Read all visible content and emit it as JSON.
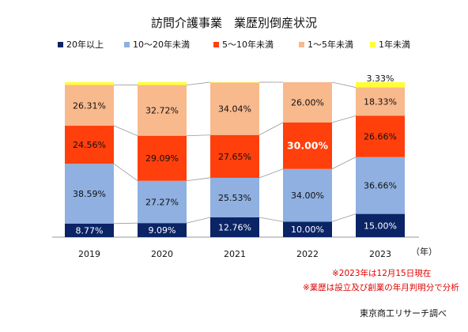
{
  "chart_data": {
    "type": "bar",
    "stacked": true,
    "percent": true,
    "title": "訪問介護事業　業歴別倒産状況",
    "categories": [
      "2019",
      "2020",
      "2021",
      "2022",
      "2023"
    ],
    "x_unit": "（年）",
    "legend_position": "top",
    "series": [
      {
        "name": "20年以上",
        "color": "#0b2466",
        "values": [
          8.77,
          9.09,
          12.76,
          10.0,
          15.0
        ],
        "labels": [
          "8.77%",
          "9.09%",
          "12.76%",
          "10.00%",
          "15.00%"
        ]
      },
      {
        "name": "10～20年未満",
        "color": "#8fb0e0",
        "values": [
          38.59,
          27.27,
          25.53,
          34.0,
          36.66
        ],
        "labels": [
          "38.59%",
          "27.27%",
          "25.53%",
          "34.00%",
          "36.66%"
        ]
      },
      {
        "name": "5～10年未満",
        "color": "#ff3f0c",
        "values": [
          24.56,
          29.09,
          27.65,
          30.0,
          26.66
        ],
        "labels": [
          "24.56%",
          "29.09%",
          "27.65%",
          "30.00%",
          "26.66%"
        ]
      },
      {
        "name": "1～5年未満",
        "color": "#f8b98d",
        "values": [
          26.31,
          32.72,
          34.04,
          26.0,
          18.33
        ],
        "labels": [
          "26.31%",
          "32.72%",
          "34.04%",
          "26.00%",
          "18.33%"
        ]
      },
      {
        "name": "1年未満",
        "color": "#ffff33",
        "values": [
          1.77,
          1.83,
          0.02,
          0.0,
          3.33
        ],
        "labels": [
          "",
          "",
          "",
          "",
          "3.33%"
        ]
      }
    ],
    "notes": [
      "※2023年は12月15日現在",
      "※業歴は設立及び創業の年月判明分で分析"
    ],
    "source": "東京商工リサーチ調べ"
  }
}
